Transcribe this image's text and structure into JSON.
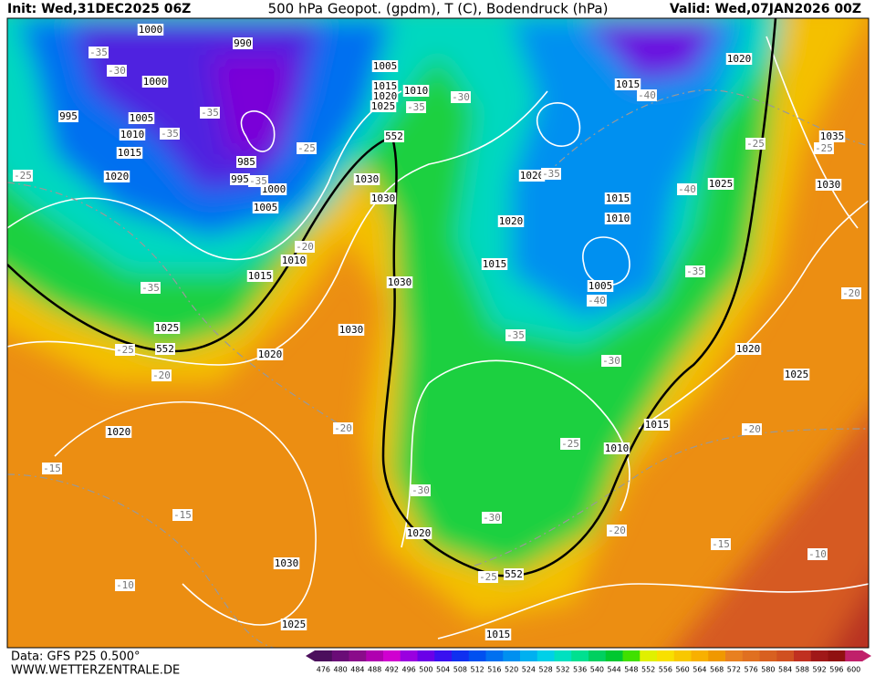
{
  "header": {
    "init": "Init: Wed,31DEC2025 06Z",
    "title": "500 hPa Geopot. (gpdm), T (C), Bodendruck (hPa)",
    "valid": "Valid: Wed,07JAN2026 00Z"
  },
  "footer": {
    "source": "Data: GFS P25 0.500°",
    "site": "WWW.WETTERZENTRALE.DE"
  },
  "legend": {
    "labels": [
      476,
      480,
      484,
      488,
      492,
      496,
      500,
      504,
      508,
      512,
      516,
      520,
      524,
      528,
      532,
      536,
      540,
      544,
      548,
      552,
      556,
      560,
      564,
      568,
      572,
      576,
      580,
      584,
      588,
      592,
      596,
      600
    ],
    "colors": [
      "#4b0f5c",
      "#6a0d77",
      "#8a0c8a",
      "#b000b0",
      "#d000d0",
      "#9a00e0",
      "#6a00e8",
      "#3a10f0",
      "#1030f0",
      "#0050f0",
      "#0070f0",
      "#0090f0",
      "#00b0f0",
      "#00d0e8",
      "#00e0c0",
      "#00e090",
      "#00d060",
      "#00c830",
      "#40e000",
      "#e0f000",
      "#f8e000",
      "#f8c800",
      "#f8b000",
      "#f09800",
      "#e88020",
      "#e07020",
      "#d86020",
      "#d05020",
      "#c03020",
      "#a01818",
      "#901010",
      "#c0206a"
    ]
  },
  "map": {
    "isobar_labels": [
      1000,
      990,
      1005,
      1015,
      1020,
      1025,
      1010,
      1000,
      995,
      1005,
      1010,
      1015,
      1020,
      985,
      995,
      1000,
      1005,
      1030,
      1030,
      1010,
      1015,
      1030,
      1025,
      1020,
      1030,
      1020,
      1030,
      1025,
      1020,
      1015,
      1010,
      1015,
      1020,
      1020,
      1015,
      1015,
      1010,
      1005,
      1015,
      1020,
      1025,
      1030,
      1035,
      1020,
      1025
    ],
    "temperature_labels": [
      -35,
      -30,
      -35,
      -35,
      -25,
      -35,
      -25,
      -35,
      -30,
      -40,
      -25,
      -25,
      -35,
      -40,
      -35,
      -40,
      -20,
      -35,
      -25,
      -20,
      -35,
      -30,
      -20,
      -20,
      -15,
      -15,
      -25,
      -30,
      -30,
      -20,
      -15,
      -10,
      -10,
      -25,
      -20
    ],
    "height_labels": [
      552,
      552,
      552
    ]
  }
}
